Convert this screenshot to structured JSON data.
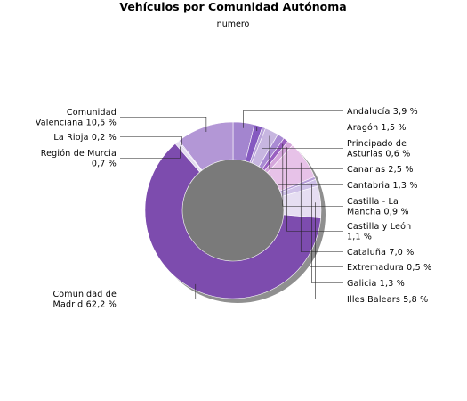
{
  "chart_data": {
    "type": "pie",
    "variant": "donut",
    "title": "Vehículos por Comunidad Autónoma",
    "subtitle": "numero",
    "slices": [
      {
        "name": "Andalucía",
        "value": 3.9,
        "label": "Andalucía 3,9 %",
        "color": "#a385cf"
      },
      {
        "name": "Aragón",
        "value": 1.5,
        "label": "Aragón 1,5 %",
        "color": "#8559c0"
      },
      {
        "name": "Principado de Asturias",
        "value": 0.6,
        "label": "Principado de Asturias 0,6 %",
        "color": "#b8a2d9"
      },
      {
        "name": "Canarias",
        "value": 2.5,
        "label": "Canarias 2,5 %",
        "color": "#c7b6e0"
      },
      {
        "name": "Cantabria",
        "value": 1.3,
        "label": "Cantabria 1,3 %",
        "color": "#a98ad3"
      },
      {
        "name": "Castilla - La Mancha",
        "value": 0.9,
        "label": "Castilla - La Mancha 0,9 %",
        "color": "#9a5fc1"
      },
      {
        "name": "Castilla y León",
        "value": 1.1,
        "label": "Castilla y León 1,1 %",
        "color": "#d5a6dc"
      },
      {
        "name": "Cataluña",
        "value": 7.0,
        "label": "Cataluña 7,0 %",
        "color": "#e7c2e8"
      },
      {
        "name": "Extremadura",
        "value": 0.5,
        "label": "Extremadura 0,5 %",
        "color": "#b79ed9"
      },
      {
        "name": "Galicia",
        "value": 1.3,
        "label": "Galicia 1,3 %",
        "color": "#cfc1e8"
      },
      {
        "name": "Illes Balears",
        "value": 5.8,
        "label": "Illes Balears 5,8 %",
        "color": "#e6def2"
      },
      {
        "name": "Comunidad de Madrid",
        "value": 62.2,
        "label": "Comunidad de Madrid 62,2 %",
        "color": "#7d4cae"
      },
      {
        "name": "Región de Murcia",
        "value": 0.7,
        "label": "Región de Murcia 0,7 %",
        "color": "#e3dcef"
      },
      {
        "name": "La Rioja",
        "value": 0.2,
        "label": "La Rioja 0,2 %",
        "color": "#c9b9e4"
      },
      {
        "name": "Comunidad Valenciana",
        "value": 10.5,
        "label": "Comunidad Valenciana 10,5 %",
        "color": "#b397d6"
      }
    ]
  }
}
